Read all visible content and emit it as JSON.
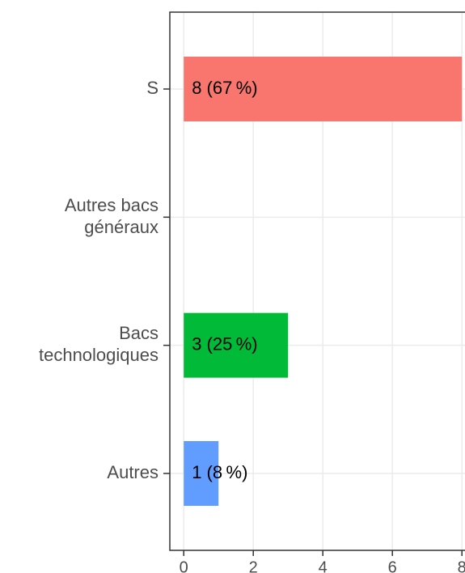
{
  "chart_data": {
    "type": "bar",
    "orientation": "horizontal",
    "categories": [
      [
        "S"
      ],
      [
        "Autres bacs",
        "généraux"
      ],
      [
        "Bacs",
        "technologiques"
      ],
      [
        "Autres"
      ]
    ],
    "values": [
      8,
      0,
      3,
      1
    ],
    "value_labels": [
      "8 (67 %)",
      null,
      "3 (25 %)",
      "1 (8 %)"
    ],
    "colors": [
      "#F8766D",
      "#B79F00",
      "#00BA38",
      "#619CFF"
    ],
    "xlim": [
      -0.4,
      8.4
    ],
    "xticks": [
      0,
      2,
      4,
      6,
      8
    ],
    "grid": true
  }
}
